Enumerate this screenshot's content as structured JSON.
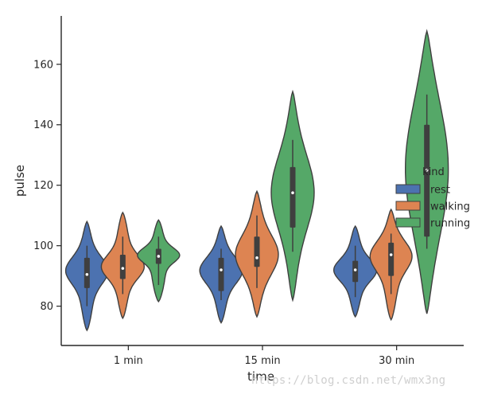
{
  "chart_data": {
    "type": "violin",
    "title": "",
    "xlabel": "time",
    "ylabel": "pulse",
    "categories": [
      "1 min",
      "15 min",
      "30 min"
    ],
    "ylim": [
      67,
      176
    ],
    "yticks": [
      80,
      100,
      120,
      140,
      160
    ],
    "legend": {
      "title": "kind",
      "position": "right",
      "entries": [
        "rest",
        "walking",
        "running"
      ]
    },
    "series": [
      {
        "name": "rest",
        "color": "#4c72b0",
        "violins": [
          {
            "category": "1 min",
            "min": 72,
            "max": 108,
            "q1": 86,
            "median": 90.5,
            "q3": 96,
            "whisker_low": 80,
            "whisker_high": 100,
            "mode": 92,
            "spread": 0.55
          },
          {
            "category": "15 min",
            "min": 74.5,
            "max": 106.5,
            "q1": 85,
            "median": 92,
            "q3": 96,
            "whisker_low": 82,
            "whisker_high": 99,
            "mode": 92,
            "spread": 0.6
          },
          {
            "category": "30 min",
            "min": 76.5,
            "max": 106.5,
            "q1": 88,
            "median": 92,
            "q3": 95,
            "whisker_low": 83,
            "whisker_high": 100,
            "mode": 92,
            "spread": 0.55
          }
        ]
      },
      {
        "name": "walking",
        "color": "#dd8452",
        "violins": [
          {
            "category": "1 min",
            "min": 76,
            "max": 111,
            "q1": 89,
            "median": 92.5,
            "q3": 97,
            "whisker_low": 84,
            "whisker_high": 103,
            "mode": 93,
            "spread": 0.5
          },
          {
            "category": "15 min",
            "min": 76.5,
            "max": 118,
            "q1": 93,
            "median": 96,
            "q3": 103,
            "whisker_low": 86,
            "whisker_high": 110,
            "mode": 97,
            "spread": 0.7
          },
          {
            "category": "30 min",
            "min": 75.5,
            "max": 112,
            "q1": 90,
            "median": 97,
            "q3": 101,
            "whisker_low": 84,
            "whisker_high": 104,
            "mode": 97,
            "spread": 0.6
          }
        ]
      },
      {
        "name": "running",
        "color": "#55a868",
        "violins": [
          {
            "category": "1 min",
            "min": 81.5,
            "max": 108.5,
            "q1": 94,
            "median": 96.5,
            "q3": 99,
            "whisker_low": 87,
            "whisker_high": 103,
            "mode": 97,
            "spread": 0.4
          },
          {
            "category": "15 min",
            "min": 82,
            "max": 151,
            "q1": 106,
            "median": 117.5,
            "q3": 126,
            "whisker_low": 98,
            "whisker_high": 135,
            "mode": 118,
            "spread": 0.8
          },
          {
            "category": "30 min",
            "min": 77.5,
            "max": 171,
            "q1": 103,
            "median": 125,
            "q3": 140,
            "whisker_low": 99,
            "whisker_high": 150,
            "mode": 126,
            "spread": 1.1
          }
        ]
      }
    ]
  },
  "watermark": "https://blog.csdn.net/wmx3ng"
}
